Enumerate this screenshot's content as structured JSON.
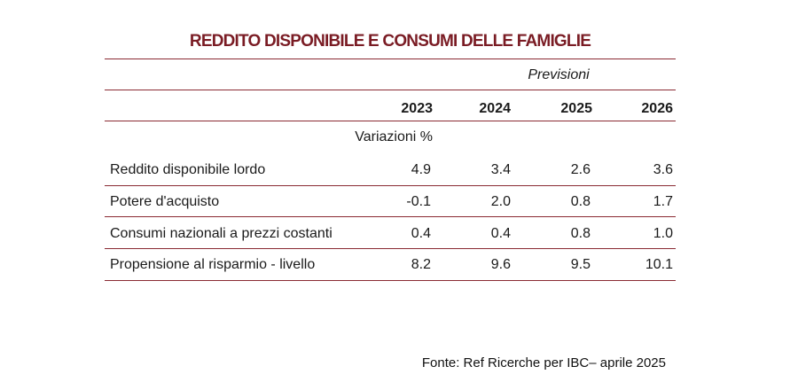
{
  "title": "REDDITO DISPONIBILE E CONSUMI DELLE FAMIGLIE",
  "forecast_label": "Previsioni",
  "years": [
    "2023",
    "2024",
    "2025",
    "2026"
  ],
  "units_label": "Variazioni %",
  "rows": [
    {
      "label": "Reddito disponibile lordo",
      "values": [
        "4.9",
        "3.4",
        "2.6",
        "3.6"
      ]
    },
    {
      "label": "Potere d'acquisto",
      "values": [
        "-0.1",
        "2.0",
        "0.8",
        "1.7"
      ]
    },
    {
      "label": "Consumi nazionali a prezzi costanti",
      "values": [
        "0.4",
        "0.4",
        "0.8",
        "1.0"
      ]
    },
    {
      "label": "Propensione al risparmio - livello",
      "values": [
        "8.2",
        "9.6",
        "9.5",
        "10.1"
      ]
    }
  ],
  "source": "Fonte: Ref Ricerche per IBC– aprile 2025",
  "accent_color": "#7a1c24"
}
